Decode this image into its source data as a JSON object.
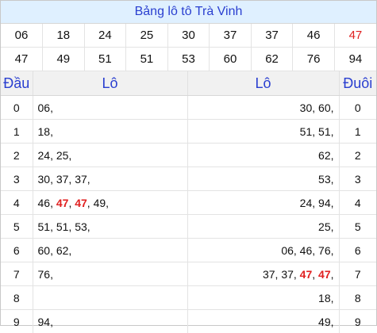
{
  "title": "Bảng lô tô Trà Vinh",
  "numbers_row1": [
    "06",
    "18",
    "24",
    "25",
    "30",
    "37",
    "37",
    "46",
    "47"
  ],
  "numbers_row2": [
    "47",
    "49",
    "51",
    "51",
    "53",
    "60",
    "62",
    "76",
    "94"
  ],
  "highlight_number": "47",
  "highlight_color": "#e02020",
  "headers": {
    "dau": "Đầu",
    "lo_left": "Lô",
    "lo_right": "Lô",
    "duoi": "Đuôi"
  },
  "rows": [
    {
      "dau": "0",
      "lo_left": "06,",
      "lo_right": "30, 60,",
      "duoi": "0"
    },
    {
      "dau": "1",
      "lo_left": "18,",
      "lo_right": "51, 51,",
      "duoi": "1"
    },
    {
      "dau": "2",
      "lo_left": "24, 25,",
      "lo_right": "62,",
      "duoi": "2"
    },
    {
      "dau": "3",
      "lo_left": "30, 37, 37,",
      "lo_right": "53,",
      "duoi": "3"
    },
    {
      "dau": "4",
      "lo_left": "46, 47, 47, 49,",
      "lo_right": "24, 94,",
      "duoi": "4"
    },
    {
      "dau": "5",
      "lo_left": "51, 51, 53,",
      "lo_right": "25,",
      "duoi": "5"
    },
    {
      "dau": "6",
      "lo_left": "60, 62,",
      "lo_right": "06, 46, 76,",
      "duoi": "6"
    },
    {
      "dau": "7",
      "lo_left": "76,",
      "lo_right": "37, 37, 47, 47,",
      "duoi": "7"
    },
    {
      "dau": "8",
      "lo_left": "",
      "lo_right": "18,",
      "duoi": "8"
    },
    {
      "dau": "9",
      "lo_left": "94,",
      "lo_right": "49,",
      "duoi": "9"
    }
  ]
}
